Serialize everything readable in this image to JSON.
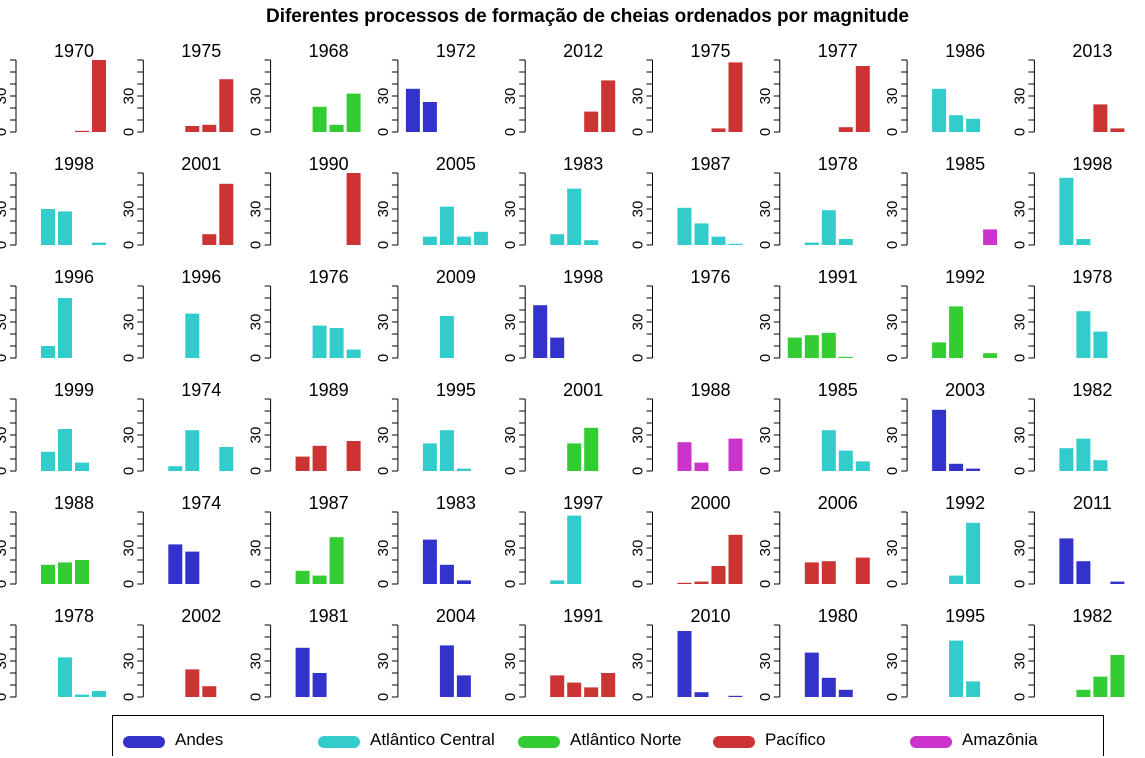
{
  "title": "Diferentes processos de formação de cheias ordenados por magnitude",
  "colors": {
    "Andes": "#3333cc",
    "Atlântico Central": "#33cccc",
    "Atlântico Norte": "#33cc33",
    "Pacífico": "#cc3333",
    "Amazônia": "#cc33cc"
  },
  "legend": [
    "Andes",
    "Atlântico Central",
    "Atlântico Norte",
    "Pacífico",
    "Amazônia"
  ],
  "chart_data": {
    "type": "bar",
    "layout": "small multiples, 6 rows × 9 columns",
    "categories": [
      "Andes",
      "Atlântico Central",
      "Atlântico Norte",
      "Pacífico",
      "Amazônia"
    ],
    "yticks": [
      0,
      30
    ],
    "ylim": [
      0,
      60
    ],
    "panels": [
      {
        "title": "1970",
        "values": [
          0,
          0,
          0,
          1,
          60
        ]
      },
      {
        "title": "1975",
        "values": [
          0,
          0,
          5,
          6,
          44
        ]
      },
      {
        "title": "1968",
        "values": [
          0,
          0,
          21,
          6,
          32
        ]
      },
      {
        "title": "1972",
        "values": [
          36,
          25,
          0,
          0,
          0
        ]
      },
      {
        "title": "2012",
        "values": [
          0,
          0,
          0,
          17,
          43
        ]
      },
      {
        "title": "1975",
        "values": [
          0,
          0,
          0,
          3,
          58
        ]
      },
      {
        "title": "1977",
        "values": [
          0,
          0,
          0,
          4,
          55
        ]
      },
      {
        "title": "1986",
        "values": [
          0,
          36,
          14,
          11,
          0
        ]
      },
      {
        "title": "2013",
        "values": [
          0,
          0,
          0,
          23,
          3
        ]
      },
      {
        "title": "1998",
        "values": [
          0,
          30,
          28,
          0,
          2
        ]
      },
      {
        "title": "2001",
        "values": [
          0,
          0,
          0,
          9,
          51
        ]
      },
      {
        "title": "1990",
        "values": [
          0,
          0,
          0,
          0,
          61
        ]
      },
      {
        "title": "2005",
        "values": [
          0,
          7,
          32,
          7,
          11
        ]
      },
      {
        "title": "1983",
        "values": [
          0,
          9,
          47,
          4,
          0
        ]
      },
      {
        "title": "1987",
        "values": [
          0,
          31,
          18,
          7,
          1
        ]
      },
      {
        "title": "1978",
        "values": [
          0,
          2,
          29,
          5,
          0
        ]
      },
      {
        "title": "1985",
        "values": [
          0,
          0,
          0,
          0,
          13
        ]
      },
      {
        "title": "1998",
        "values": [
          0,
          56,
          5,
          0,
          0
        ]
      },
      {
        "title": "1996",
        "values": [
          0,
          10,
          50,
          0,
          0
        ]
      },
      {
        "title": "1996",
        "values": [
          0,
          0,
          37,
          0,
          0
        ]
      },
      {
        "title": "1976",
        "values": [
          0,
          0,
          27,
          25,
          7
        ]
      },
      {
        "title": "2009",
        "values": [
          0,
          0,
          35,
          0,
          0
        ]
      },
      {
        "title": "1998",
        "values": [
          44,
          17,
          0,
          0,
          0
        ]
      },
      {
        "title": "1976",
        "values": [
          0,
          0,
          0,
          0,
          0
        ]
      },
      {
        "title": "1991",
        "values": [
          17,
          19,
          21,
          1,
          0
        ]
      },
      {
        "title": "1992",
        "values": [
          0,
          13,
          43,
          0,
          4
        ]
      },
      {
        "title": "1978",
        "values": [
          0,
          0,
          39,
          22,
          0
        ]
      },
      {
        "title": "1999",
        "values": [
          0,
          16,
          35,
          7,
          0
        ]
      },
      {
        "title": "1974",
        "values": [
          0,
          4,
          34,
          0,
          20
        ]
      },
      {
        "title": "1989",
        "values": [
          0,
          12,
          21,
          0,
          25
        ]
      },
      {
        "title": "1995",
        "values": [
          0,
          23,
          34,
          2,
          0
        ]
      },
      {
        "title": "2001",
        "values": [
          0,
          0,
          23,
          36,
          0
        ]
      },
      {
        "title": "1988",
        "values": [
          0,
          24,
          7,
          0,
          27
        ]
      },
      {
        "title": "1985",
        "values": [
          0,
          0,
          34,
          17,
          8
        ]
      },
      {
        "title": "2003",
        "values": [
          0,
          51,
          6,
          2,
          0
        ]
      },
      {
        "title": "1982",
        "values": [
          0,
          19,
          27,
          9,
          0
        ]
      },
      {
        "title": "1988",
        "values": [
          0,
          16,
          18,
          20,
          0
        ]
      },
      {
        "title": "1974",
        "values": [
          0,
          33,
          27,
          0,
          0
        ]
      },
      {
        "title": "1987",
        "values": [
          0,
          11,
          7,
          39,
          0
        ]
      },
      {
        "title": "1983",
        "values": [
          0,
          37,
          16,
          3,
          0
        ]
      },
      {
        "title": "1997",
        "values": [
          0,
          3,
          57,
          0,
          0
        ]
      },
      {
        "title": "2000",
        "values": [
          0,
          1,
          2,
          15,
          41
        ]
      },
      {
        "title": "2006",
        "values": [
          0,
          18,
          19,
          0,
          22
        ]
      },
      {
        "title": "1992",
        "values": [
          0,
          0,
          7,
          51,
          0
        ]
      },
      {
        "title": "2011",
        "values": [
          0,
          38,
          19,
          0,
          2
        ]
      },
      {
        "title": "1978",
        "values": [
          0,
          0,
          33,
          2,
          5
        ]
      },
      {
        "title": "2002",
        "values": [
          0,
          0,
          23,
          9,
          0
        ]
      },
      {
        "title": "1981",
        "values": [
          0,
          41,
          20,
          0,
          0
        ]
      },
      {
        "title": "2004",
        "values": [
          0,
          0,
          43,
          18,
          0
        ]
      },
      {
        "title": "1991",
        "values": [
          0,
          18,
          12,
          8,
          20
        ]
      },
      {
        "title": "2010",
        "values": [
          0,
          55,
          4,
          0,
          1
        ]
      },
      {
        "title": "1980",
        "values": [
          0,
          37,
          16,
          6,
          0
        ]
      },
      {
        "title": "1995",
        "values": [
          0,
          0,
          47,
          13,
          0
        ]
      },
      {
        "title": "1982",
        "values": [
          0,
          0,
          6,
          17,
          35
        ]
      }
    ]
  }
}
